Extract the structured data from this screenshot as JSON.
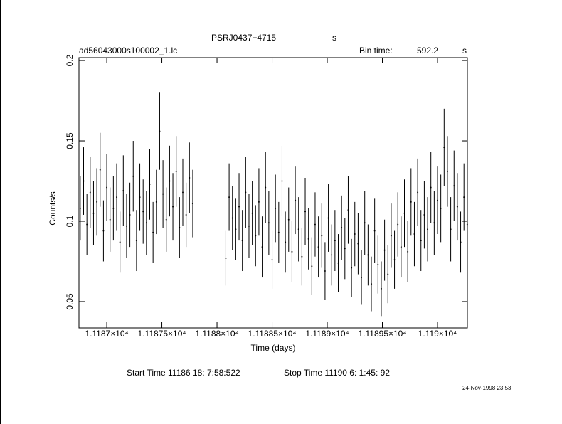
{
  "chart_data": {
    "type": "errorbar",
    "title": "PSRJ0437−4715",
    "title_unit": "s",
    "file_name": "ad56043000s100002_1.lc",
    "bin_time_label": "Bin time:",
    "bin_time": "592.2",
    "bin_time_unit": "s",
    "x_label": "Time (days)",
    "y_label": "Counts/s",
    "start_time": "Start Time 11186 18: 7:58:522",
    "stop_time": "Stop Time 11190  6: 1:45: 92",
    "timestamp": "24-Nov-1998 23:53",
    "xlim": [
      11186.748,
      11190.271
    ],
    "ylim": [
      0.0336,
      0.2018
    ],
    "xticks": [
      {
        "value": 11187,
        "label": "1.1187×10⁴"
      },
      {
        "value": 11187.5,
        "label": "1.11875×10⁴"
      },
      {
        "value": 11188,
        "label": "1.1188×10⁴"
      },
      {
        "value": 11188.5,
        "label": "1.11885×10⁴"
      },
      {
        "value": 11189,
        "label": "1.1189×10⁴"
      },
      {
        "value": 11189.5,
        "label": "1.11895×10⁴"
      },
      {
        "value": 11190,
        "label": "1.119×10⁴"
      }
    ],
    "yticks": [
      0.05,
      0.1,
      0.15,
      0.2
    ],
    "series": [
      {
        "color": "#000000",
        "x": [
          11186.76,
          11186.79,
          11186.82,
          11186.85,
          11186.88,
          11186.91,
          11186.94,
          11186.97,
          11187.0,
          11187.03,
          11187.06,
          11187.09,
          11187.12,
          11187.15,
          11187.18,
          11187.21,
          11187.24,
          11187.27,
          11187.3,
          11187.33,
          11187.36,
          11187.39,
          11187.42,
          11187.45,
          11187.48,
          11187.51,
          11187.54,
          11187.57,
          11187.6,
          11187.63,
          11187.66,
          11187.69,
          11187.72,
          11187.75,
          11187.78,
          11188.08,
          11188.11,
          11188.14,
          11188.17,
          11188.2,
          11188.23,
          11188.26,
          11188.29,
          11188.32,
          11188.35,
          11188.38,
          11188.41,
          11188.44,
          11188.47,
          11188.5,
          11188.53,
          11188.56,
          11188.59,
          11188.62,
          11188.65,
          11188.68,
          11188.71,
          11188.74,
          11188.77,
          11188.8,
          11188.83,
          11188.86,
          11188.89,
          11188.92,
          11188.95,
          11188.98,
          11189.01,
          11189.04,
          11189.07,
          11189.1,
          11189.13,
          11189.16,
          11189.19,
          11189.22,
          11189.25,
          11189.28,
          11189.31,
          11189.34,
          11189.37,
          11189.4,
          11189.43,
          11189.46,
          11189.49,
          11189.52,
          11189.55,
          11189.58,
          11189.61,
          11189.64,
          11189.67,
          11189.7,
          11189.73,
          11189.76,
          11189.79,
          11189.82,
          11189.85,
          11189.88,
          11189.91,
          11189.94,
          11189.97,
          11190.0,
          11190.03,
          11190.06,
          11190.09,
          11190.12,
          11190.15,
          11190.18,
          11190.21,
          11190.24,
          11190.27
        ],
        "values": [
          0.108,
          0.125,
          0.098,
          0.118,
          0.105,
          0.112,
          0.132,
          0.094,
          0.121,
          0.101,
          0.108,
          0.115,
          0.087,
          0.119,
          0.097,
          0.104,
          0.128,
          0.088,
          0.115,
          0.106,
          0.099,
          0.123,
          0.093,
          0.112,
          0.156,
          0.117,
          0.101,
          0.125,
          0.109,
          0.131,
          0.096,
          0.118,
          0.104,
          0.127,
          0.111,
          0.077,
          0.115,
          0.102,
          0.095,
          0.109,
          0.088,
          0.118,
          0.097,
          0.105,
          0.091,
          0.112,
          0.084,
          0.121,
          0.099,
          0.076,
          0.108,
          0.093,
          0.125,
          0.087,
          0.101,
          0.081,
          0.113,
          0.095,
          0.078,
          0.106,
          0.089,
          0.072,
          0.098,
          0.084,
          0.091,
          0.069,
          0.102,
          0.079,
          0.088,
          0.074,
          0.096,
          0.083,
          0.107,
          0.071,
          0.092,
          0.086,
          0.065,
          0.099,
          0.079,
          0.061,
          0.094,
          0.073,
          0.058,
          0.082,
          0.067,
          0.091,
          0.076,
          0.098,
          0.084,
          0.105,
          0.081,
          0.112,
          0.092,
          0.118,
          0.088,
          0.104,
          0.095,
          0.121,
          0.099,
          0.113,
          0.108,
          0.146,
          0.131,
          0.095,
          0.122,
          0.109,
          0.087,
          0.115,
          0.098
        ],
        "errors": [
          0.02,
          0.021,
          0.019,
          0.022,
          0.02,
          0.021,
          0.023,
          0.019,
          0.021,
          0.02,
          0.02,
          0.021,
          0.019,
          0.022,
          0.02,
          0.02,
          0.022,
          0.019,
          0.021,
          0.02,
          0.02,
          0.022,
          0.019,
          0.02,
          0.024,
          0.021,
          0.02,
          0.022,
          0.021,
          0.022,
          0.019,
          0.021,
          0.02,
          0.022,
          0.021,
          0.017,
          0.021,
          0.02,
          0.019,
          0.021,
          0.019,
          0.022,
          0.02,
          0.02,
          0.019,
          0.021,
          0.019,
          0.022,
          0.02,
          0.018,
          0.021,
          0.019,
          0.022,
          0.019,
          0.02,
          0.019,
          0.021,
          0.02,
          0.018,
          0.021,
          0.019,
          0.018,
          0.02,
          0.019,
          0.02,
          0.018,
          0.021,
          0.019,
          0.019,
          0.018,
          0.02,
          0.019,
          0.021,
          0.018,
          0.02,
          0.019,
          0.017,
          0.02,
          0.019,
          0.017,
          0.02,
          0.018,
          0.017,
          0.019,
          0.018,
          0.02,
          0.018,
          0.02,
          0.019,
          0.021,
          0.019,
          0.021,
          0.02,
          0.021,
          0.019,
          0.021,
          0.02,
          0.022,
          0.02,
          0.021,
          0.021,
          0.024,
          0.022,
          0.02,
          0.022,
          0.021,
          0.019,
          0.021,
          0.02
        ]
      }
    ]
  }
}
